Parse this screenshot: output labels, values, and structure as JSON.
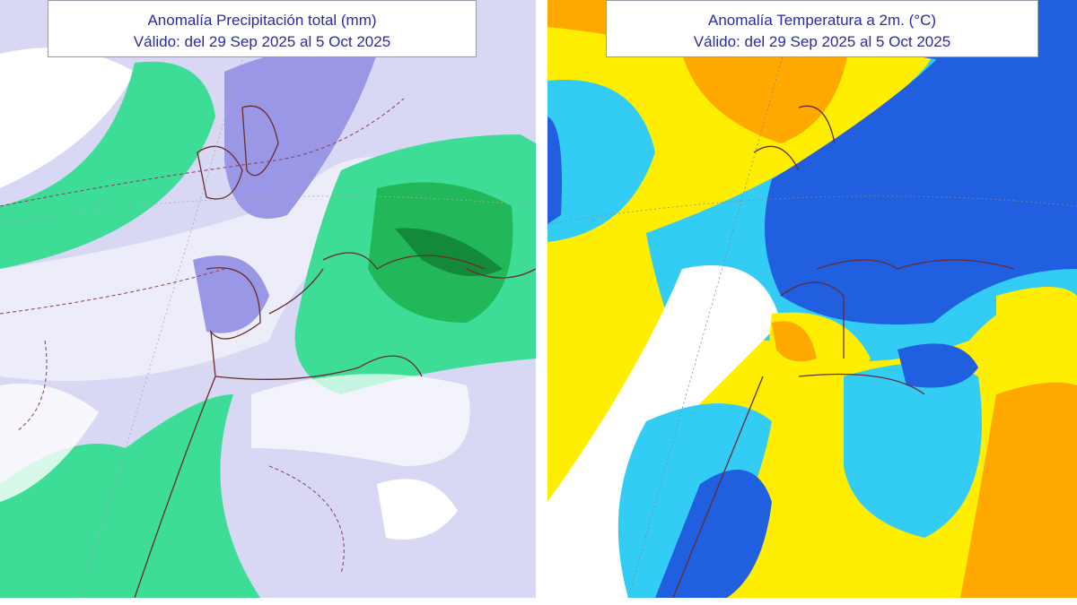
{
  "maps": [
    {
      "title": "Anomalía Precipitación total (mm)",
      "subtitle": "Válido: del 29 Sep 2025 al 5 Oct 2025",
      "colors": {
        "background": "#d8d7f4",
        "white": "#ffffff",
        "light_green": "#3ddc97",
        "green": "#22b85a",
        "dark_green": "#138a3a",
        "purple": "#9a98e6",
        "border": "#6b2a2a"
      }
    },
    {
      "title": "Anomalía Temperatura a 2m. (°C)",
      "subtitle": "Válido: del 29 Sep 2025 al 5 Oct 2025",
      "colors": {
        "yellow": "#ffee00",
        "orange": "#ffa800",
        "light_blue": "#33ccf5",
        "blue": "#1f5fe0",
        "white": "#ffffff",
        "border": "#6b2a2a"
      }
    }
  ]
}
